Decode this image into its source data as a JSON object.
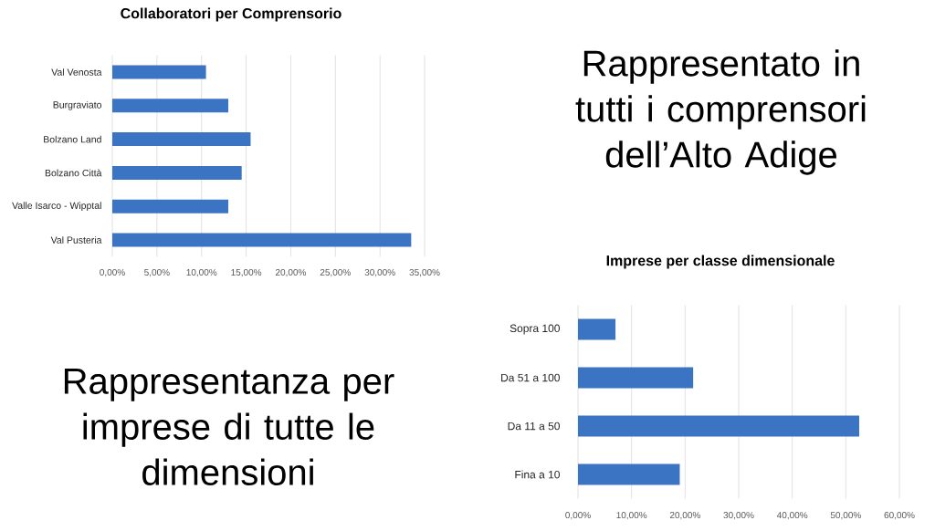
{
  "chart_data": [
    {
      "type": "bar",
      "orientation": "horizontal",
      "title": "Collaboratori per Comprensorio",
      "categories": [
        "Val Venosta",
        "Burgraviato",
        "Bolzano Land",
        "Bolzano Città",
        "Valle Isarco - Wipptal",
        "Val Pusteria"
      ],
      "values": [
        10.5,
        13,
        15.5,
        14.5,
        13,
        33.5
      ],
      "color": "#3c74c4",
      "xlim": [
        0,
        35
      ],
      "xticks": [
        {
          "value": 0,
          "label": "0,00%"
        },
        {
          "value": 5,
          "label": "5,00%"
        },
        {
          "value": 10,
          "label": "10,00%"
        },
        {
          "value": 15,
          "label": "15,00%"
        },
        {
          "value": 20,
          "label": "20,00%"
        },
        {
          "value": 25,
          "label": "25,00%"
        },
        {
          "value": 30,
          "label": "30,00%"
        },
        {
          "value": 35,
          "label": "35,00%"
        }
      ],
      "grid": "x"
    },
    {
      "type": "other",
      "annotations": [
        "Rappresentato in tutti i comprensori dell’Alto Adige"
      ]
    },
    {
      "type": "other",
      "annotations": [
        "Rappresentanza per imprese di tutte le dimensioni"
      ]
    },
    {
      "type": "bar",
      "orientation": "horizontal",
      "title": "Imprese per classe dimensionale",
      "categories": [
        "Sopra 100",
        "Da 51 a 100",
        "Da 11 a 50",
        "Fina a 10"
      ],
      "values": [
        7,
        21.5,
        52.5,
        19
      ],
      "color": "#3c74c4",
      "xlim": [
        0,
        60
      ],
      "xticks": [
        {
          "value": 0,
          "label": "0,00%"
        },
        {
          "value": 10,
          "label": "10,00%"
        },
        {
          "value": 20,
          "label": "20,00%"
        },
        {
          "value": 30,
          "label": "30,00%"
        },
        {
          "value": 40,
          "label": "40,00%"
        },
        {
          "value": 50,
          "label": "50,00%"
        },
        {
          "value": 60,
          "label": "60,00%"
        }
      ],
      "grid": "x"
    }
  ]
}
